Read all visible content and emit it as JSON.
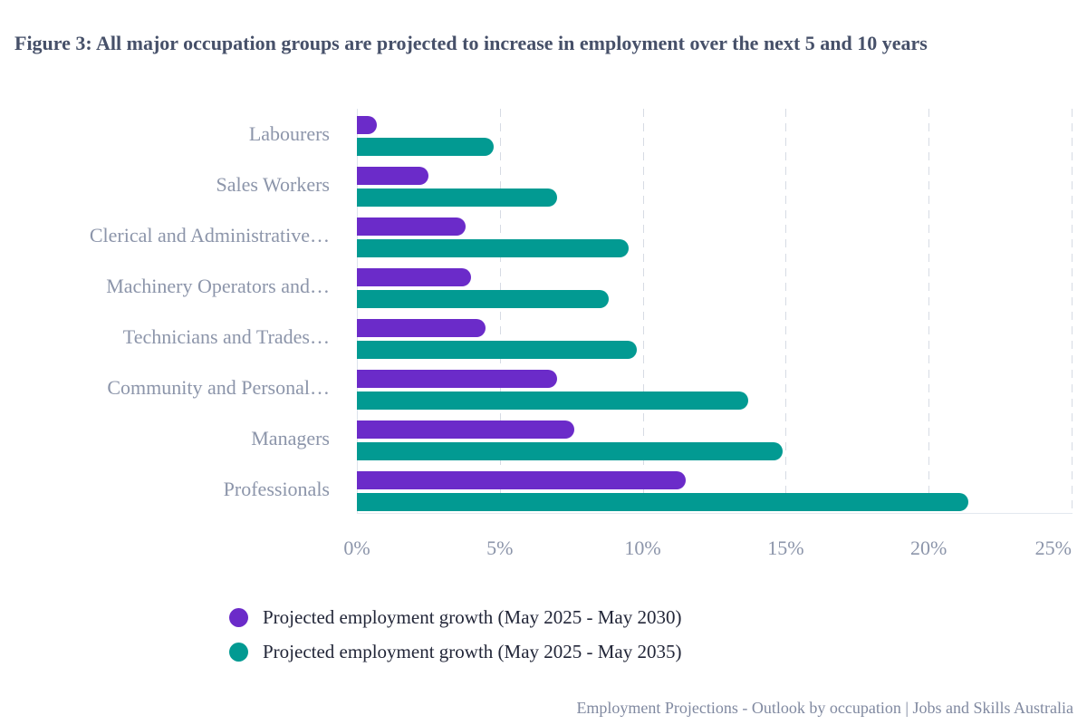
{
  "title": "Figure 3: All major occupation groups are projected to increase in employment over the next 5 and 10 years",
  "footer_source": "Employment Projections - Outlook by occupation | Jobs and Skills Australia",
  "colors": {
    "series_2030": "#6b2bc9",
    "series_2035": "#029a92",
    "gridline": "#d6dbe4",
    "axis_line": "#dde3ec",
    "title_text": "#465069",
    "axis_text": "#8c95aa",
    "legend_text": "#222638"
  },
  "chart_data": {
    "type": "bar",
    "orientation": "horizontal",
    "title": "Figure 3: All major occupation groups are projected to increase in employment over the next 5 and 10 years",
    "categories": [
      "Labourers",
      "Sales Workers",
      "Clerical and Administrative…",
      "Machinery Operators and…",
      "Technicians and Trades…",
      "Community and Personal…",
      "Managers",
      "Professionals"
    ],
    "series": [
      {
        "name": "Projected employment growth (May 2025 - May 2030)",
        "values": [
          0.7,
          2.5,
          3.8,
          4.0,
          4.5,
          7.0,
          7.6,
          11.5
        ]
      },
      {
        "name": "Projected employment growth (May 2025 - May 2035)",
        "values": [
          4.8,
          7.0,
          9.5,
          8.8,
          9.8,
          13.7,
          14.9,
          21.4
        ]
      }
    ],
    "value_unit": "%",
    "xlim": [
      0,
      25
    ],
    "x_tick_values": [
      0,
      5,
      10,
      15,
      20,
      25
    ],
    "x_ticks": [
      "0%",
      "5%",
      "10%",
      "15%",
      "20%",
      "25%"
    ],
    "grid": "vertical-dashed",
    "legend_position": "bottom-left"
  }
}
